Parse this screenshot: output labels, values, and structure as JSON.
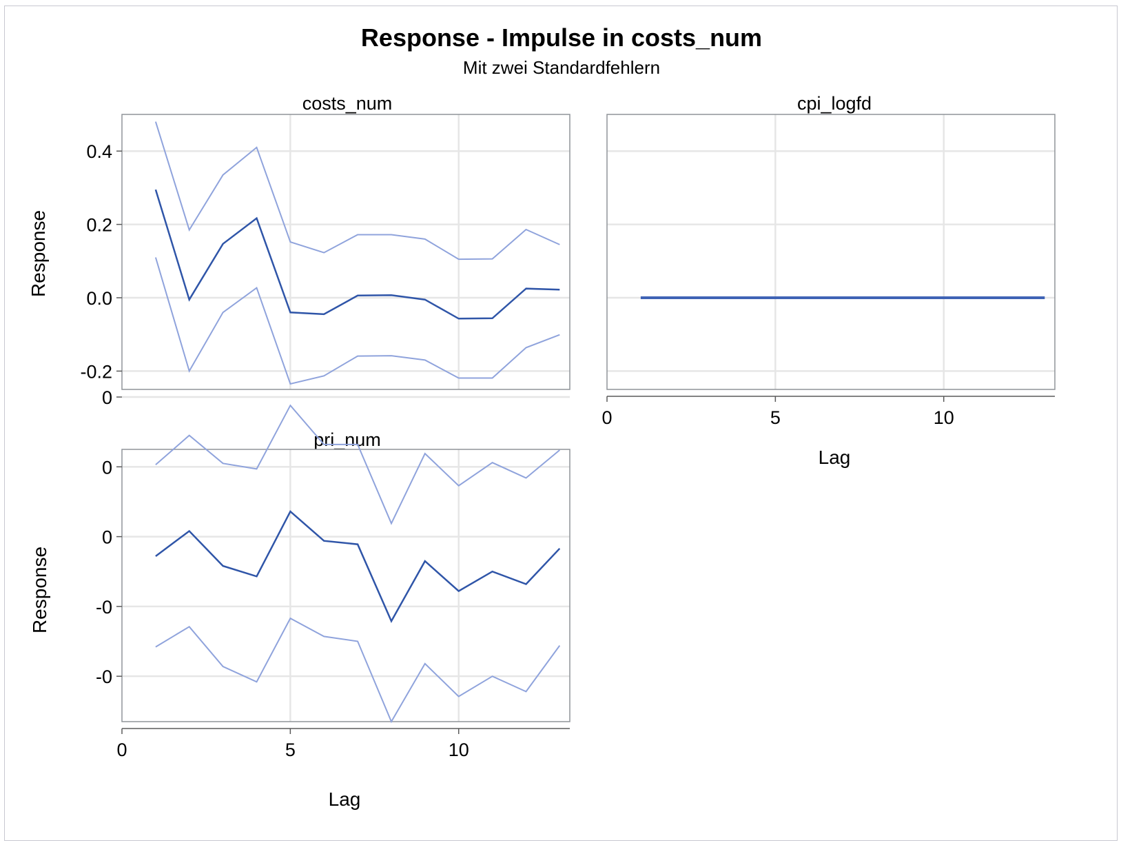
{
  "title": "Response - Impulse in costs_num",
  "subtitle": "Mit zwei Standardfehlern",
  "chart_data": [
    {
      "type": "line",
      "panel": "costs_num",
      "title": "costs_num",
      "xlabel": "",
      "ylabel": "Response",
      "xlim": [
        0,
        13.3
      ],
      "ylim": [
        -0.25,
        0.5
      ],
      "xticks": [
        0,
        5,
        10
      ],
      "xtick_labels": [
        "0",
        "5",
        "10"
      ],
      "show_xtick_labels": false,
      "yticks": [
        -0.2,
        0.0,
        0.2,
        0.4
      ],
      "ytick_labels": [
        "-0.2",
        "0.0",
        "0.2",
        "0.4"
      ],
      "grid": true,
      "x": [
        1,
        2,
        3,
        4,
        5,
        6,
        7,
        8,
        9,
        10,
        11,
        12,
        13
      ],
      "series": [
        {
          "role": "upper",
          "values": [
            0.48,
            0.185,
            0.335,
            0.41,
            0.152,
            0.123,
            0.172,
            0.172,
            0.16,
            0.105,
            0.106,
            0.186,
            0.145
          ]
        },
        {
          "role": "estimate",
          "values": [
            0.295,
            -0.005,
            0.147,
            0.217,
            -0.04,
            -0.045,
            0.006,
            0.007,
            -0.005,
            -0.057,
            -0.056,
            0.025,
            0.022
          ]
        },
        {
          "role": "lower",
          "values": [
            0.11,
            -0.2,
            -0.04,
            0.027,
            -0.235,
            -0.213,
            -0.159,
            -0.158,
            -0.17,
            -0.219,
            -0.219,
            -0.136,
            -0.101
          ]
        }
      ]
    },
    {
      "type": "line",
      "panel": "cpi_logfd",
      "title": "cpi_logfd",
      "xlabel": "Lag",
      "ylabel": "",
      "xlim": [
        0,
        13.3
      ],
      "ylim": [
        -0.25,
        0.5
      ],
      "xticks": [
        0,
        5,
        10
      ],
      "xtick_labels": [
        "0",
        "5",
        "10"
      ],
      "show_xtick_labels": true,
      "yticks": [
        -0.2,
        0.0,
        0.2,
        0.4
      ],
      "ytick_labels": [],
      "grid": true,
      "x": [
        1,
        13
      ],
      "series": [
        {
          "role": "estimate",
          "values": [
            0,
            0
          ]
        }
      ]
    },
    {
      "type": "line",
      "panel": "pri_num",
      "title": "pri_num",
      "xlabel": "Lag",
      "ylabel": "Response",
      "xlim": [
        0,
        13.3
      ],
      "ylim": [
        -0.0265,
        0.0125
      ],
      "xticks": [
        0,
        5,
        10
      ],
      "xtick_labels": [
        "0",
        "5",
        "10"
      ],
      "show_xtick_labels": true,
      "yticks": [
        -0.02,
        -0.01,
        0.0,
        0.01,
        0.02
      ],
      "ytick_labels": [
        "-0",
        "-0",
        "0",
        "0",
        "0"
      ],
      "grid": true,
      "x": [
        1,
        2,
        3,
        4,
        5,
        6,
        7,
        8,
        9,
        10,
        11,
        12,
        13
      ],
      "series": [
        {
          "role": "upper",
          "values": [
            0.0103,
            0.0145,
            0.0105,
            0.0097,
            0.0188,
            0.0132,
            0.0132,
            0.0019,
            0.0119,
            0.0073,
            0.0106,
            0.0084,
            0.0124
          ]
        },
        {
          "role": "estimate",
          "values": [
            -0.0028,
            0.0008,
            -0.0042,
            -0.0057,
            0.0036,
            -0.0006,
            -0.0011,
            -0.0121,
            -0.0035,
            -0.0078,
            -0.005,
            -0.0068,
            -0.0017
          ]
        },
        {
          "role": "lower",
          "values": [
            -0.0158,
            -0.0129,
            -0.0186,
            -0.0208,
            -0.0117,
            -0.0143,
            -0.015,
            -0.0265,
            -0.0182,
            -0.0229,
            -0.02,
            -0.0222,
            -0.0156
          ]
        }
      ]
    }
  ]
}
